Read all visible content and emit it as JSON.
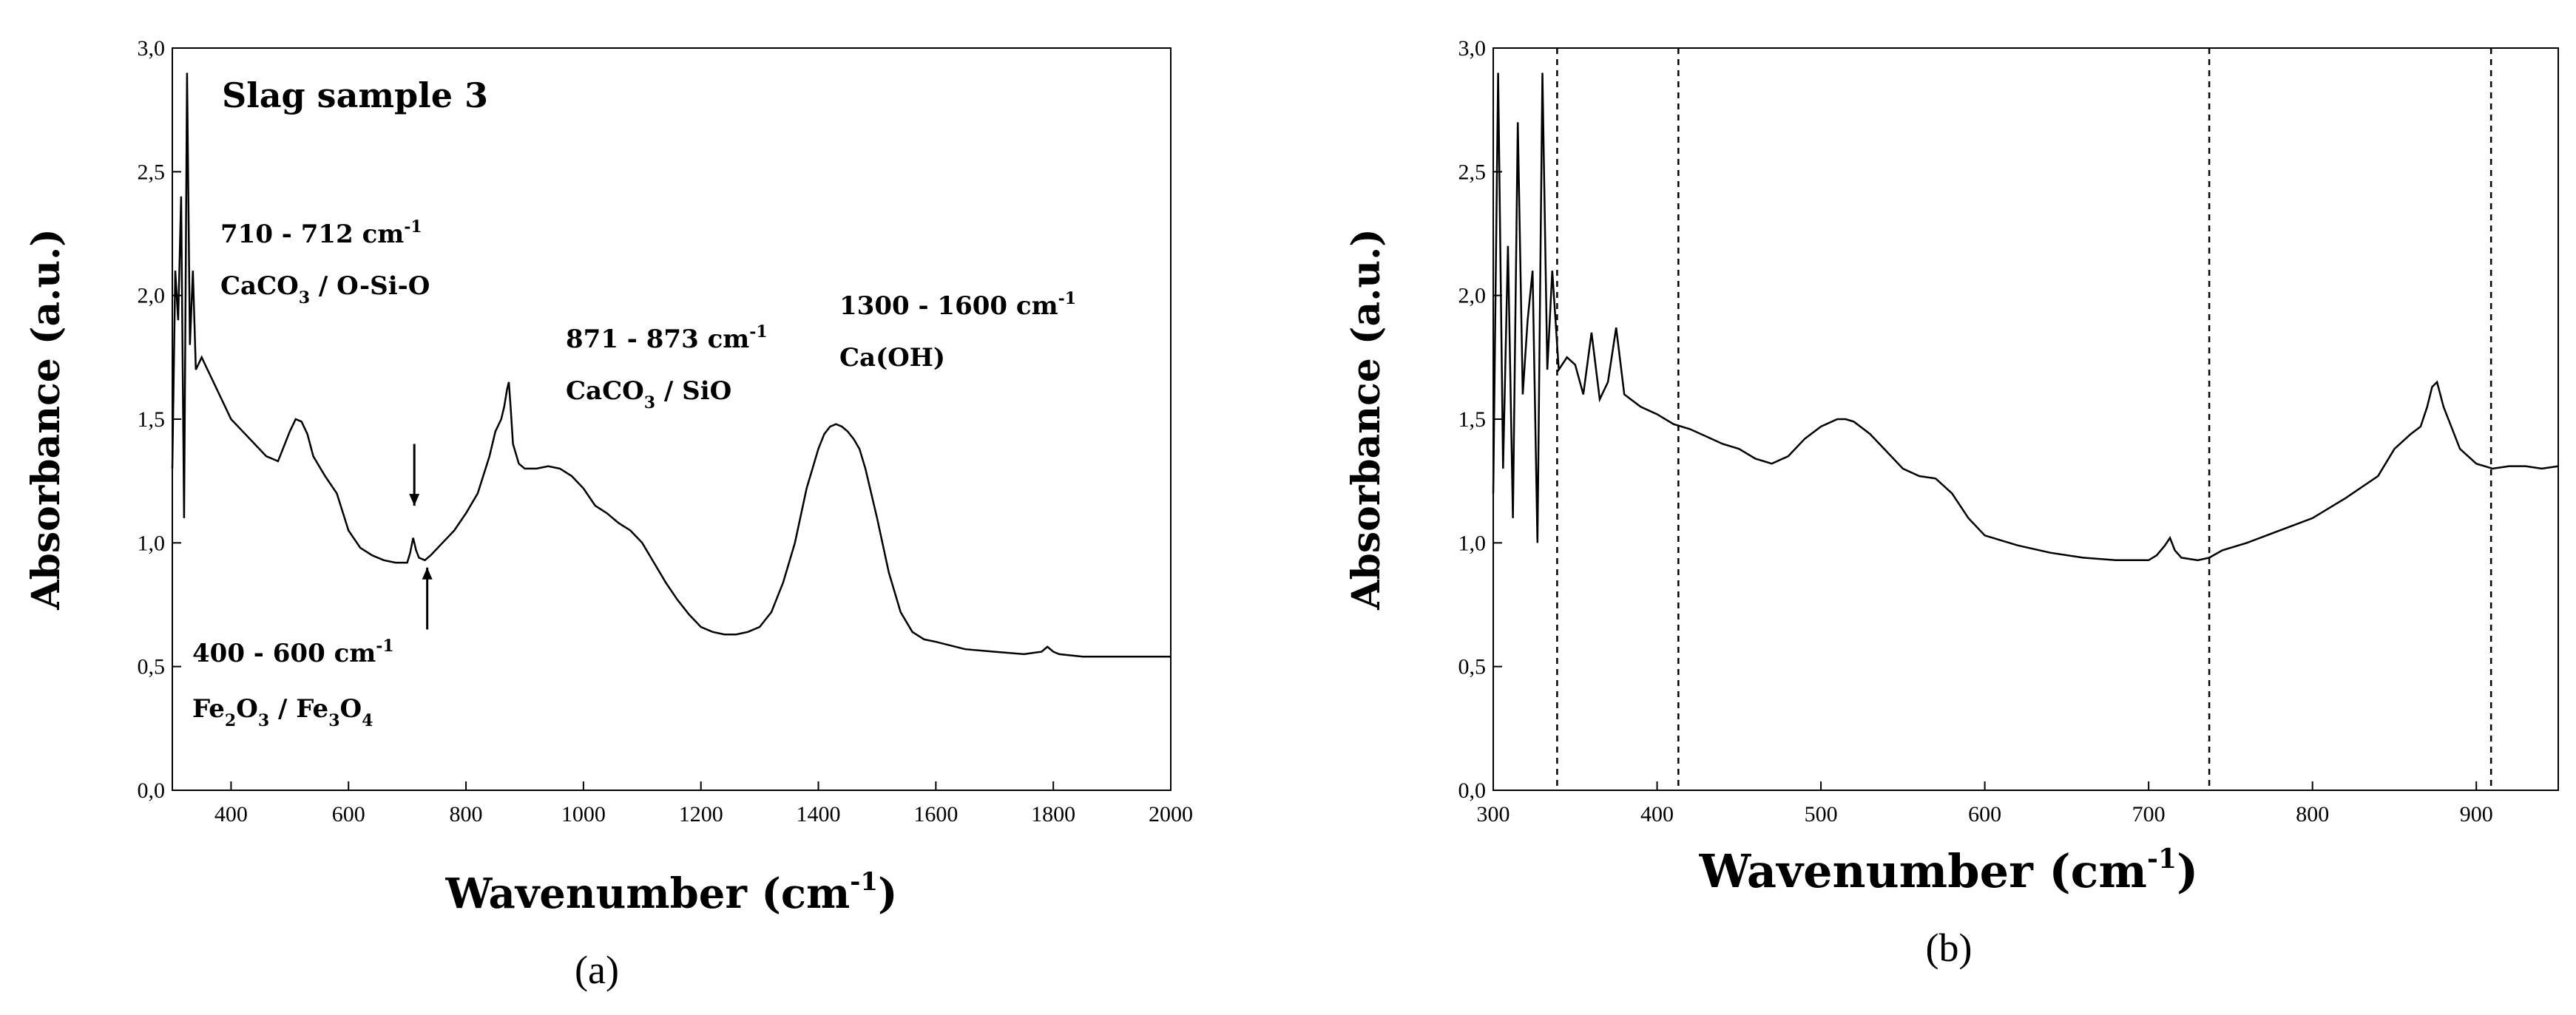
{
  "chart_data": [
    {
      "panel": "a",
      "panel_label": "(a)",
      "type": "line",
      "title": "Slag sample 3",
      "xlabel": "Wavenumber (cm",
      "xlabel_sup": "-1",
      "xlabel_end": ")",
      "ylabel": "Absorbance (a.u.)",
      "xlim": [
        300,
        2000
      ],
      "ylim": [
        0,
        3
      ],
      "x_ticks": [
        400,
        600,
        800,
        1000,
        1200,
        1400,
        1600,
        1800,
        2000
      ],
      "y_ticks": [
        "0,0",
        "0,5",
        "1,0",
        "1,5",
        "2,0",
        "2,5",
        "3,0"
      ],
      "annotations": {
        "a1": {
          "l1": "710 - 712 cm",
          "l1_sup": "-1",
          "l2a": "CaCO",
          "l2_sub": "3",
          "l2b": " / O-Si-O"
        },
        "a2": {
          "l1": "871 - 873 cm",
          "l1_sup": "-1",
          "l2a": "CaCO",
          "l2_sub": "3",
          "l2b": " / SiO"
        },
        "a3": {
          "l1": "1300 - 1600 cm",
          "l1_sup": "-1",
          "l2": "Ca(OH)"
        },
        "a4": {
          "l1": "400 - 600 cm",
          "l1_sup": "-1",
          "l2a": "Fe",
          "s1": "2",
          "l2b": "O",
          "s2": "3",
          "l2c": " / Fe",
          "s3": "3",
          "l2d": "O",
          "s4": "4"
        }
      },
      "series": [
        {
          "name": "Slag sample 3",
          "x": [
            300,
            305,
            310,
            315,
            320,
            325,
            330,
            335,
            340,
            350,
            360,
            370,
            380,
            390,
            400,
            420,
            440,
            460,
            480,
            500,
            510,
            520,
            530,
            540,
            560,
            580,
            600,
            620,
            640,
            660,
            680,
            700,
            705,
            710,
            715,
            720,
            730,
            740,
            760,
            780,
            800,
            820,
            840,
            850,
            860,
            865,
            870,
            873,
            876,
            880,
            890,
            900,
            920,
            940,
            960,
            980,
            1000,
            1020,
            1040,
            1060,
            1080,
            1100,
            1120,
            1140,
            1160,
            1180,
            1200,
            1220,
            1240,
            1260,
            1280,
            1300,
            1320,
            1340,
            1360,
            1380,
            1400,
            1410,
            1420,
            1430,
            1440,
            1450,
            1460,
            1470,
            1480,
            1500,
            1520,
            1540,
            1560,
            1580,
            1600,
            1650,
            1700,
            1750,
            1780,
            1790,
            1800,
            1810,
            1850,
            1900,
            1950,
            2000
          ],
          "y": [
            1.3,
            2.1,
            1.9,
            2.4,
            1.1,
            2.9,
            1.8,
            2.1,
            1.7,
            1.75,
            1.7,
            1.65,
            1.6,
            1.55,
            1.5,
            1.45,
            1.4,
            1.35,
            1.33,
            1.45,
            1.5,
            1.49,
            1.44,
            1.35,
            1.27,
            1.2,
            1.05,
            0.98,
            0.95,
            0.93,
            0.92,
            0.92,
            0.96,
            1.02,
            0.97,
            0.94,
            0.93,
            0.95,
            1.0,
            1.05,
            1.12,
            1.2,
            1.35,
            1.45,
            1.5,
            1.55,
            1.62,
            1.65,
            1.55,
            1.4,
            1.32,
            1.3,
            1.3,
            1.31,
            1.3,
            1.27,
            1.22,
            1.15,
            1.12,
            1.08,
            1.05,
            1.0,
            0.92,
            0.84,
            0.77,
            0.71,
            0.66,
            0.64,
            0.63,
            0.63,
            0.64,
            0.66,
            0.72,
            0.84,
            1.0,
            1.22,
            1.38,
            1.44,
            1.47,
            1.48,
            1.47,
            1.45,
            1.42,
            1.38,
            1.3,
            1.1,
            0.88,
            0.72,
            0.64,
            0.61,
            0.6,
            0.57,
            0.56,
            0.55,
            0.56,
            0.58,
            0.56,
            0.55,
            0.54,
            0.54,
            0.54,
            0.54
          ]
        }
      ],
      "arrows": [
        {
          "x": 712,
          "from_y": 1.4,
          "to_y": 1.15
        },
        {
          "x": 734,
          "from_y": 0.65,
          "to_y": 0.9
        }
      ]
    },
    {
      "panel": "b",
      "panel_label": "(b)",
      "type": "line",
      "xlabel": "Wavenumber (cm",
      "xlabel_sup": "-1",
      "xlabel_end": ")",
      "ylabel": "Absorbance (a.u.)",
      "xlim": [
        300,
        950
      ],
      "ylim": [
        0,
        3
      ],
      "x_ticks": [
        300,
        400,
        500,
        600,
        700,
        800,
        900
      ],
      "y_ticks": [
        "0,0",
        "0,5",
        "1,0",
        "1,5",
        "2,0",
        "2,5",
        "3,0"
      ],
      "vlines": [
        339,
        413,
        737,
        909
      ],
      "series": [
        {
          "name": "Slag sample 3",
          "x": [
            300,
            303,
            306,
            309,
            312,
            315,
            318,
            321,
            324,
            327,
            330,
            333,
            336,
            340,
            345,
            350,
            355,
            360,
            365,
            370,
            375,
            380,
            390,
            400,
            410,
            420,
            430,
            440,
            450,
            460,
            470,
            480,
            490,
            500,
            510,
            515,
            520,
            530,
            540,
            550,
            560,
            570,
            580,
            590,
            600,
            620,
            640,
            660,
            680,
            700,
            705,
            710,
            713,
            716,
            720,
            730,
            737,
            745,
            760,
            780,
            800,
            820,
            840,
            850,
            860,
            866,
            870,
            873,
            876,
            880,
            890,
            900,
            910,
            920,
            930,
            940,
            950
          ],
          "y": [
            1.2,
            2.9,
            1.3,
            2.2,
            1.1,
            2.7,
            1.6,
            1.9,
            2.1,
            1.0,
            2.9,
            1.7,
            2.1,
            1.7,
            1.75,
            1.72,
            1.6,
            1.85,
            1.58,
            1.65,
            1.87,
            1.6,
            1.55,
            1.52,
            1.48,
            1.46,
            1.43,
            1.4,
            1.38,
            1.34,
            1.32,
            1.35,
            1.42,
            1.47,
            1.5,
            1.5,
            1.49,
            1.44,
            1.37,
            1.3,
            1.27,
            1.26,
            1.2,
            1.1,
            1.03,
            0.99,
            0.96,
            0.94,
            0.93,
            0.93,
            0.95,
            0.99,
            1.02,
            0.97,
            0.94,
            0.93,
            0.94,
            0.97,
            1.0,
            1.05,
            1.1,
            1.18,
            1.27,
            1.38,
            1.44,
            1.47,
            1.55,
            1.63,
            1.65,
            1.55,
            1.38,
            1.32,
            1.3,
            1.31,
            1.31,
            1.3,
            1.31
          ]
        }
      ]
    }
  ]
}
